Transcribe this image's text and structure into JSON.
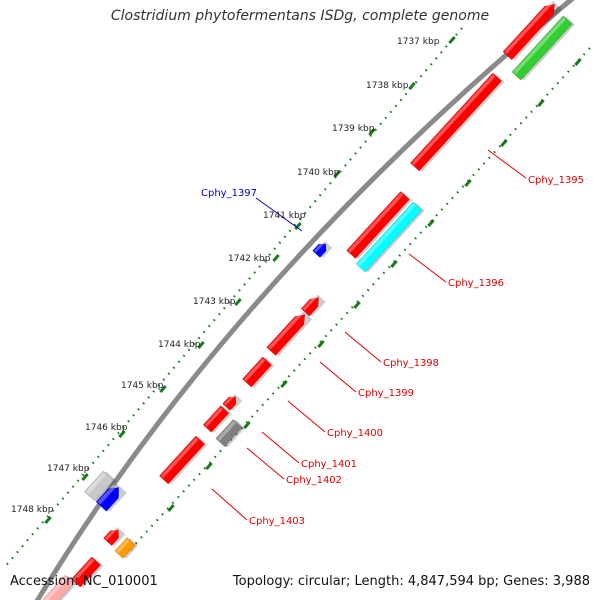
{
  "title": "Clostridium phytofermentans ISDg, complete genome",
  "accession": "Accession: NC_010001",
  "topology": "Topology: circular; Length: 4,847,594 bp; Genes: 3,988",
  "colors": {
    "backbone": "#8a8a8a",
    "tick": "#1a7a1a",
    "label_red": "#e00000",
    "label_blue": "#0000cc"
  },
  "ticks": [
    {
      "label": "1737 kbp",
      "kbp": 1737
    },
    {
      "label": "1738 kbp",
      "kbp": 1738
    },
    {
      "label": "1739 kbp",
      "kbp": 1739
    },
    {
      "label": "1740 kbp",
      "kbp": 1740
    },
    {
      "label": "1741 kbp",
      "kbp": 1741
    },
    {
      "label": "1742 kbp",
      "kbp": 1742
    },
    {
      "label": "1743 kbp",
      "kbp": 1743
    },
    {
      "label": "1744 kbp",
      "kbp": 1744
    },
    {
      "label": "1745 kbp",
      "kbp": 1745
    },
    {
      "label": "1746 kbp",
      "kbp": 1746
    },
    {
      "label": "1747 kbp",
      "kbp": 1747
    },
    {
      "label": "1748 kbp",
      "kbp": 1748
    }
  ],
  "genes": [
    {
      "name": "Cphy_1395",
      "color": "#ff0000"
    },
    {
      "name": "Cphy_1396",
      "color": "#00ffff"
    },
    {
      "name": "Cphy_1397",
      "color": "#0000ff"
    },
    {
      "name": "Cphy_1398",
      "color": "#ff0000"
    },
    {
      "name": "Cphy_1399",
      "color": "#ff0000"
    },
    {
      "name": "Cphy_1400",
      "color": "#ff0000"
    },
    {
      "name": "Cphy_1401",
      "color": "#ff0000"
    },
    {
      "name": "Cphy_1402",
      "color": "#808080"
    },
    {
      "name": "Cphy_1403",
      "color": "#ff0000"
    }
  ],
  "unlabeled_features": [
    {
      "color": "#ff0000"
    },
    {
      "color": "#33cc33"
    },
    {
      "color": "#ff0000"
    },
    {
      "color": "#ff0000"
    },
    {
      "color": "#ff0000"
    },
    {
      "color": "#c8c8c8"
    },
    {
      "color": "#0000ff"
    },
    {
      "color": "#ff0000"
    },
    {
      "color": "#ff9900"
    },
    {
      "color": "#ff0000"
    },
    {
      "color": "#ffaaaa"
    }
  ]
}
